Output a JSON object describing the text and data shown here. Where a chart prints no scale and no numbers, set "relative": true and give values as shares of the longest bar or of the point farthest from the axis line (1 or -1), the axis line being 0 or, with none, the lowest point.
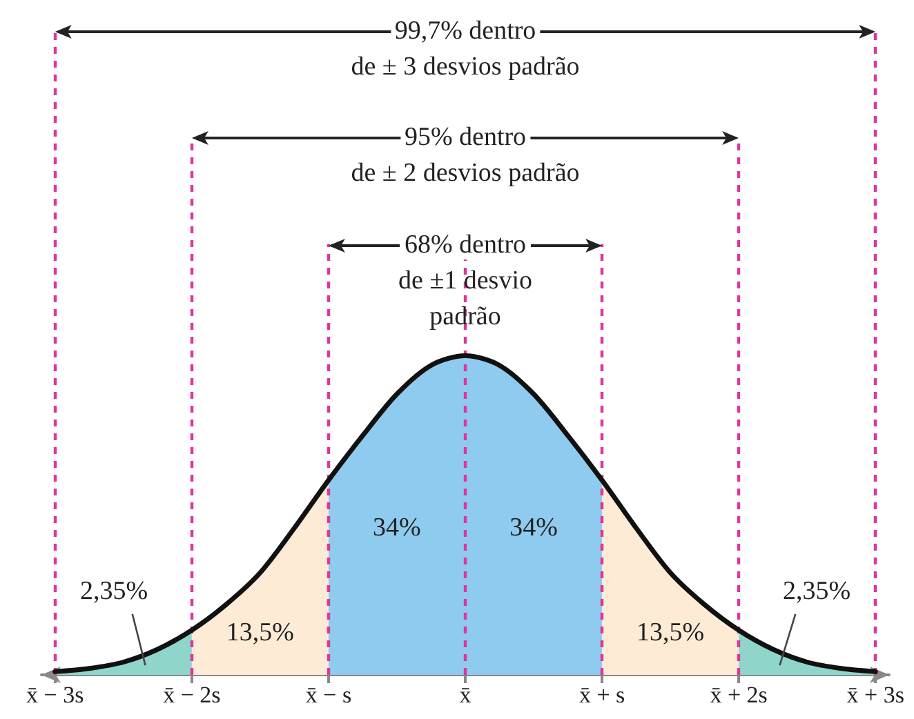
{
  "chart_data": {
    "type": "area",
    "relative": true,
    "xlim": [
      -3.1,
      3.1
    ],
    "xticks": [
      {
        "value": -3,
        "label": "x̄ − 3s"
      },
      {
        "value": -2,
        "label": "x̄ − 2s"
      },
      {
        "value": -1,
        "label": "x̄ − s"
      },
      {
        "value": 0,
        "label": "x̄"
      },
      {
        "value": 1,
        "label": "x̄ + s"
      },
      {
        "value": 2,
        "label": "x̄ + 2s"
      },
      {
        "value": 3,
        "label": "x̄ + 3s"
      }
    ],
    "series": [
      {
        "color": "#8fd5ca",
        "x": [
          -3,
          -2.75,
          -2.5,
          -2.25,
          -2
        ],
        "values": [
          0.01,
          0.02,
          0.04,
          0.08,
          0.14
        ]
      },
      {
        "color": "#fdebd6",
        "x": [
          -2,
          -1.75,
          -1.5,
          -1.25,
          -1
        ],
        "values": [
          0.14,
          0.22,
          0.32,
          0.46,
          0.61
        ]
      },
      {
        "color": "#8fcbef",
        "x": [
          -1,
          -0.75,
          -0.5,
          -0.25,
          0,
          0.25,
          0.5,
          0.75,
          1
        ],
        "values": [
          0.61,
          0.75,
          0.88,
          0.97,
          1,
          0.97,
          0.88,
          0.75,
          0.61
        ]
      },
      {
        "color": "#fdebd6",
        "x": [
          1,
          1.25,
          1.5,
          1.75,
          2
        ],
        "values": [
          0.61,
          0.46,
          0.32,
          0.22,
          0.14
        ]
      },
      {
        "color": "#8fd5ca",
        "x": [
          2,
          2.25,
          2.5,
          2.75,
          3
        ],
        "values": [
          0.14,
          0.08,
          0.04,
          0.02,
          0.01
        ]
      },
      {
        "type": "line",
        "color": "#111111",
        "x": [
          -3,
          -2.75,
          -2.5,
          -2.25,
          -2,
          -1.75,
          -1.5,
          -1.25,
          -1,
          -0.75,
          -0.5,
          -0.25,
          0,
          0.25,
          0.5,
          0.75,
          1,
          1.25,
          1.5,
          1.75,
          2,
          2.25,
          2.5,
          2.75,
          3
        ],
        "values": [
          0.01,
          0.02,
          0.04,
          0.08,
          0.14,
          0.22,
          0.32,
          0.46,
          0.61,
          0.75,
          0.88,
          0.97,
          1,
          0.97,
          0.88,
          0.75,
          0.61,
          0.46,
          0.32,
          0.22,
          0.14,
          0.08,
          0.04,
          0.02,
          0.01
        ]
      }
    ],
    "ref_lines": [
      {
        "axis": "x",
        "value": -3,
        "color": "#e0359a",
        "line_style": "dashed"
      },
      {
        "axis": "x",
        "value": -2,
        "color": "#e0359a",
        "line_style": "dashed"
      },
      {
        "axis": "x",
        "value": -1,
        "color": "#e0359a",
        "line_style": "dashed"
      },
      {
        "axis": "x",
        "value": 0,
        "color": "#e0359a",
        "line_style": "dashed"
      },
      {
        "axis": "x",
        "value": 1,
        "color": "#e0359a",
        "line_style": "dashed"
      },
      {
        "axis": "x",
        "value": 2,
        "color": "#e0359a",
        "line_style": "dashed"
      },
      {
        "axis": "x",
        "value": 3,
        "color": "#e0359a",
        "line_style": "dashed"
      }
    ],
    "annotations": [
      "99,7% dentro\nde ± 3 desvios padrão",
      "95% dentro\nde ± 2 desvios padrão",
      "68% dentro\nde ±1 desvio\npadrão",
      "2,35%",
      "13,5%",
      "34%",
      "34%",
      "13,5%",
      "2,35%"
    ],
    "grid": false
  }
}
